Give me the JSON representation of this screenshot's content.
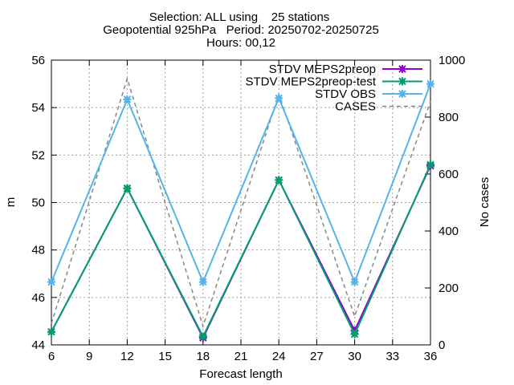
{
  "chart_data": {
    "type": "line",
    "title_lines": [
      "Selection: ALL using    25 stations",
      "Geopotential 925hPa   Period: 20250702-20250725",
      "Hours: 00,12"
    ],
    "xlabel": "Forecast length",
    "ylabel": "m",
    "y2label": "No cases",
    "x_ticks": [
      6,
      9,
      12,
      15,
      18,
      21,
      24,
      27,
      30,
      33,
      36
    ],
    "y_ticks": [
      44,
      46,
      48,
      50,
      52,
      54,
      56
    ],
    "y2_ticks": [
      0,
      200,
      400,
      600,
      800,
      1000
    ],
    "xlim": [
      6,
      36
    ],
    "ylim": [
      44,
      56
    ],
    "y2lim": [
      0,
      1000
    ],
    "grid": true,
    "legend_position": "top-right",
    "x": [
      6,
      12,
      18,
      24,
      30,
      36
    ],
    "series": [
      {
        "name": "STDV MEPS2preop",
        "axis": "y",
        "color": "#9400d3",
        "dash": false,
        "marker": "x-star",
        "values": [
          44.55,
          50.6,
          44.3,
          50.95,
          44.6,
          51.55
        ]
      },
      {
        "name": "STDV MEPS2preop-test",
        "axis": "y",
        "color": "#009e73",
        "dash": false,
        "marker": "x-star",
        "values": [
          44.55,
          50.6,
          44.35,
          50.95,
          44.45,
          51.6
        ]
      },
      {
        "name": "STDV OBS",
        "axis": "y",
        "color": "#56b4e9",
        "dash": false,
        "marker": "x-star",
        "values": [
          46.65,
          54.35,
          46.65,
          54.4,
          46.65,
          55.0
        ]
      },
      {
        "name": "CASES",
        "axis": "y2",
        "color": "#888888",
        "dash": true,
        "marker": "none",
        "values": [
          75,
          935,
          65,
          880,
          100,
          855
        ]
      }
    ]
  }
}
